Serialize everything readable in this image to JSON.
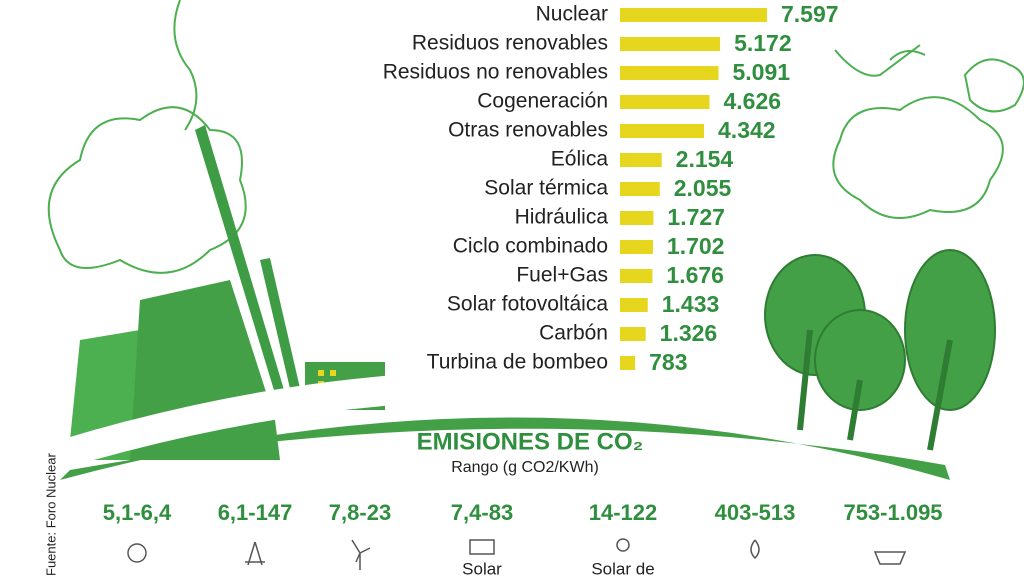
{
  "chart_data": {
    "type": "bar",
    "orientation": "horizontal",
    "categories": [
      "Nuclear",
      "Residuos renovables",
      "Residuos no renovables",
      "Cogeneración",
      "Otras renovables",
      "Eólica",
      "Solar térmica",
      "Hidráulica",
      "Ciclo combinado",
      "Fuel+Gas",
      "Solar fotovoltáica",
      "Carbón",
      "Turbina de bombeo"
    ],
    "values": [
      7597,
      5172,
      5091,
      4626,
      4342,
      2154,
      2055,
      1727,
      1702,
      1676,
      1433,
      1326,
      783
    ],
    "value_labels": [
      "7.597",
      "5.172",
      "5.091",
      "4.626",
      "4.342",
      "2.154",
      "2.055",
      "1.727",
      "1.702",
      "1.676",
      "1.433",
      "1.326",
      "783"
    ],
    "color": "#e6d61e"
  },
  "emissions": {
    "title": "EMISIONES DE CO₂",
    "subtitle": "Rango (g CO2/KWh)",
    "ranges": [
      "5,1-6,4",
      "6,1-147",
      "7,8-23",
      "7,4-83",
      "14-122",
      "403-513",
      "753-1.095"
    ],
    "icon_labels": [
      "Solar",
      "Solar de"
    ]
  },
  "source": "Fuente: Foro Nuclear"
}
